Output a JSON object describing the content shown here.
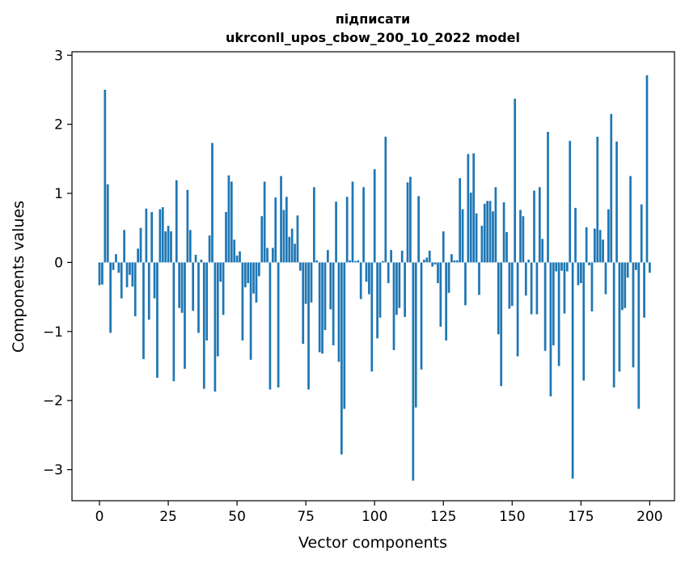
{
  "chart_data": {
    "type": "bar",
    "title_line1": "підписати",
    "title_line2": "ukrconll_upos_cbow_200_10_2022 model",
    "xlabel": "Vector components",
    "ylabel": "Components values",
    "xlim": [
      -10,
      209
    ],
    "ylim": [
      -3.45,
      3.05
    ],
    "xticks": [
      0,
      25,
      50,
      75,
      100,
      125,
      150,
      175,
      200
    ],
    "xtick_labels": [
      "0",
      "25",
      "50",
      "75",
      "100",
      "125",
      "150",
      "175",
      "200"
    ],
    "yticks": [
      3,
      2,
      1,
      0,
      -1,
      -2,
      -3
    ],
    "ytick_labels": [
      "3",
      "2",
      "1",
      "0",
      "−1",
      "−2",
      "−3"
    ],
    "bar_color": "#1f77b4",
    "values": [
      -0.33,
      -0.32,
      2.5,
      1.13,
      -1.02,
      -0.11,
      0.12,
      -0.15,
      -0.52,
      0.47,
      -0.36,
      -0.18,
      -0.35,
      -0.78,
      0.2,
      0.5,
      -1.4,
      0.78,
      -0.83,
      0.73,
      -0.52,
      -1.67,
      0.77,
      0.8,
      0.45,
      0.53,
      0.45,
      -1.72,
      1.19,
      -0.66,
      -0.73,
      -1.54,
      1.05,
      0.47,
      -0.7,
      0.11,
      -1.02,
      0.04,
      -1.83,
      -1.13,
      0.39,
      1.73,
      -1.87,
      -1.36,
      -0.28,
      -0.76,
      0.73,
      1.26,
      1.17,
      0.33,
      0.1,
      0.16,
      -1.13,
      -0.36,
      -0.3,
      -1.41,
      -0.45,
      -0.58,
      -0.2,
      0.67,
      1.17,
      0.21,
      -1.84,
      0.21,
      0.94,
      -1.81,
      1.25,
      0.76,
      0.95,
      0.37,
      0.49,
      0.27,
      0.68,
      -0.12,
      -1.18,
      -0.6,
      -1.84,
      -0.58,
      1.09,
      0.03,
      -1.3,
      -1.32,
      -0.98,
      0.18,
      -0.68,
      -1.2,
      0.88,
      -1.44,
      -2.78,
      -2.12,
      0.95,
      0.03,
      1.17,
      0.02,
      0.03,
      -0.53,
      1.09,
      -0.28,
      -0.46,
      -1.58,
      1.35,
      -1.1,
      -0.8,
      0.02,
      1.82,
      -0.3,
      0.18,
      -1.27,
      -0.76,
      -0.66,
      0.17,
      -0.79,
      1.16,
      1.24,
      -3.16,
      -2.1,
      0.96,
      -1.55,
      0.04,
      0.07,
      0.17,
      -0.06,
      -0.03,
      -0.3,
      -0.93,
      0.45,
      -1.13,
      -0.44,
      0.12,
      0.03,
      0.03,
      1.22,
      0.77,
      -0.62,
      1.57,
      1.01,
      1.58,
      0.71,
      -0.47,
      0.53,
      0.85,
      0.89,
      0.89,
      0.74,
      1.09,
      -1.04,
      -1.79,
      0.87,
      0.44,
      -0.67,
      -0.63,
      2.37,
      -1.36,
      0.76,
      0.67,
      -0.48,
      0.04,
      -0.75,
      1.04,
      -0.75,
      1.09,
      0.34,
      -1.28,
      1.89,
      -1.94,
      -1.2,
      -0.13,
      -1.5,
      -0.12,
      -0.74,
      -0.13,
      1.76,
      -3.13,
      0.79,
      -0.33,
      -0.3,
      -1.71,
      0.51,
      -0.04,
      -0.71,
      0.49,
      1.82,
      0.47,
      0.33,
      -0.46,
      0.77,
      2.15,
      -1.81,
      1.75,
      -1.58,
      -0.69,
      -0.66,
      -0.22,
      1.25,
      -1.52,
      -0.11,
      -2.12,
      0.84,
      -0.8,
      2.71,
      -0.15
    ]
  }
}
